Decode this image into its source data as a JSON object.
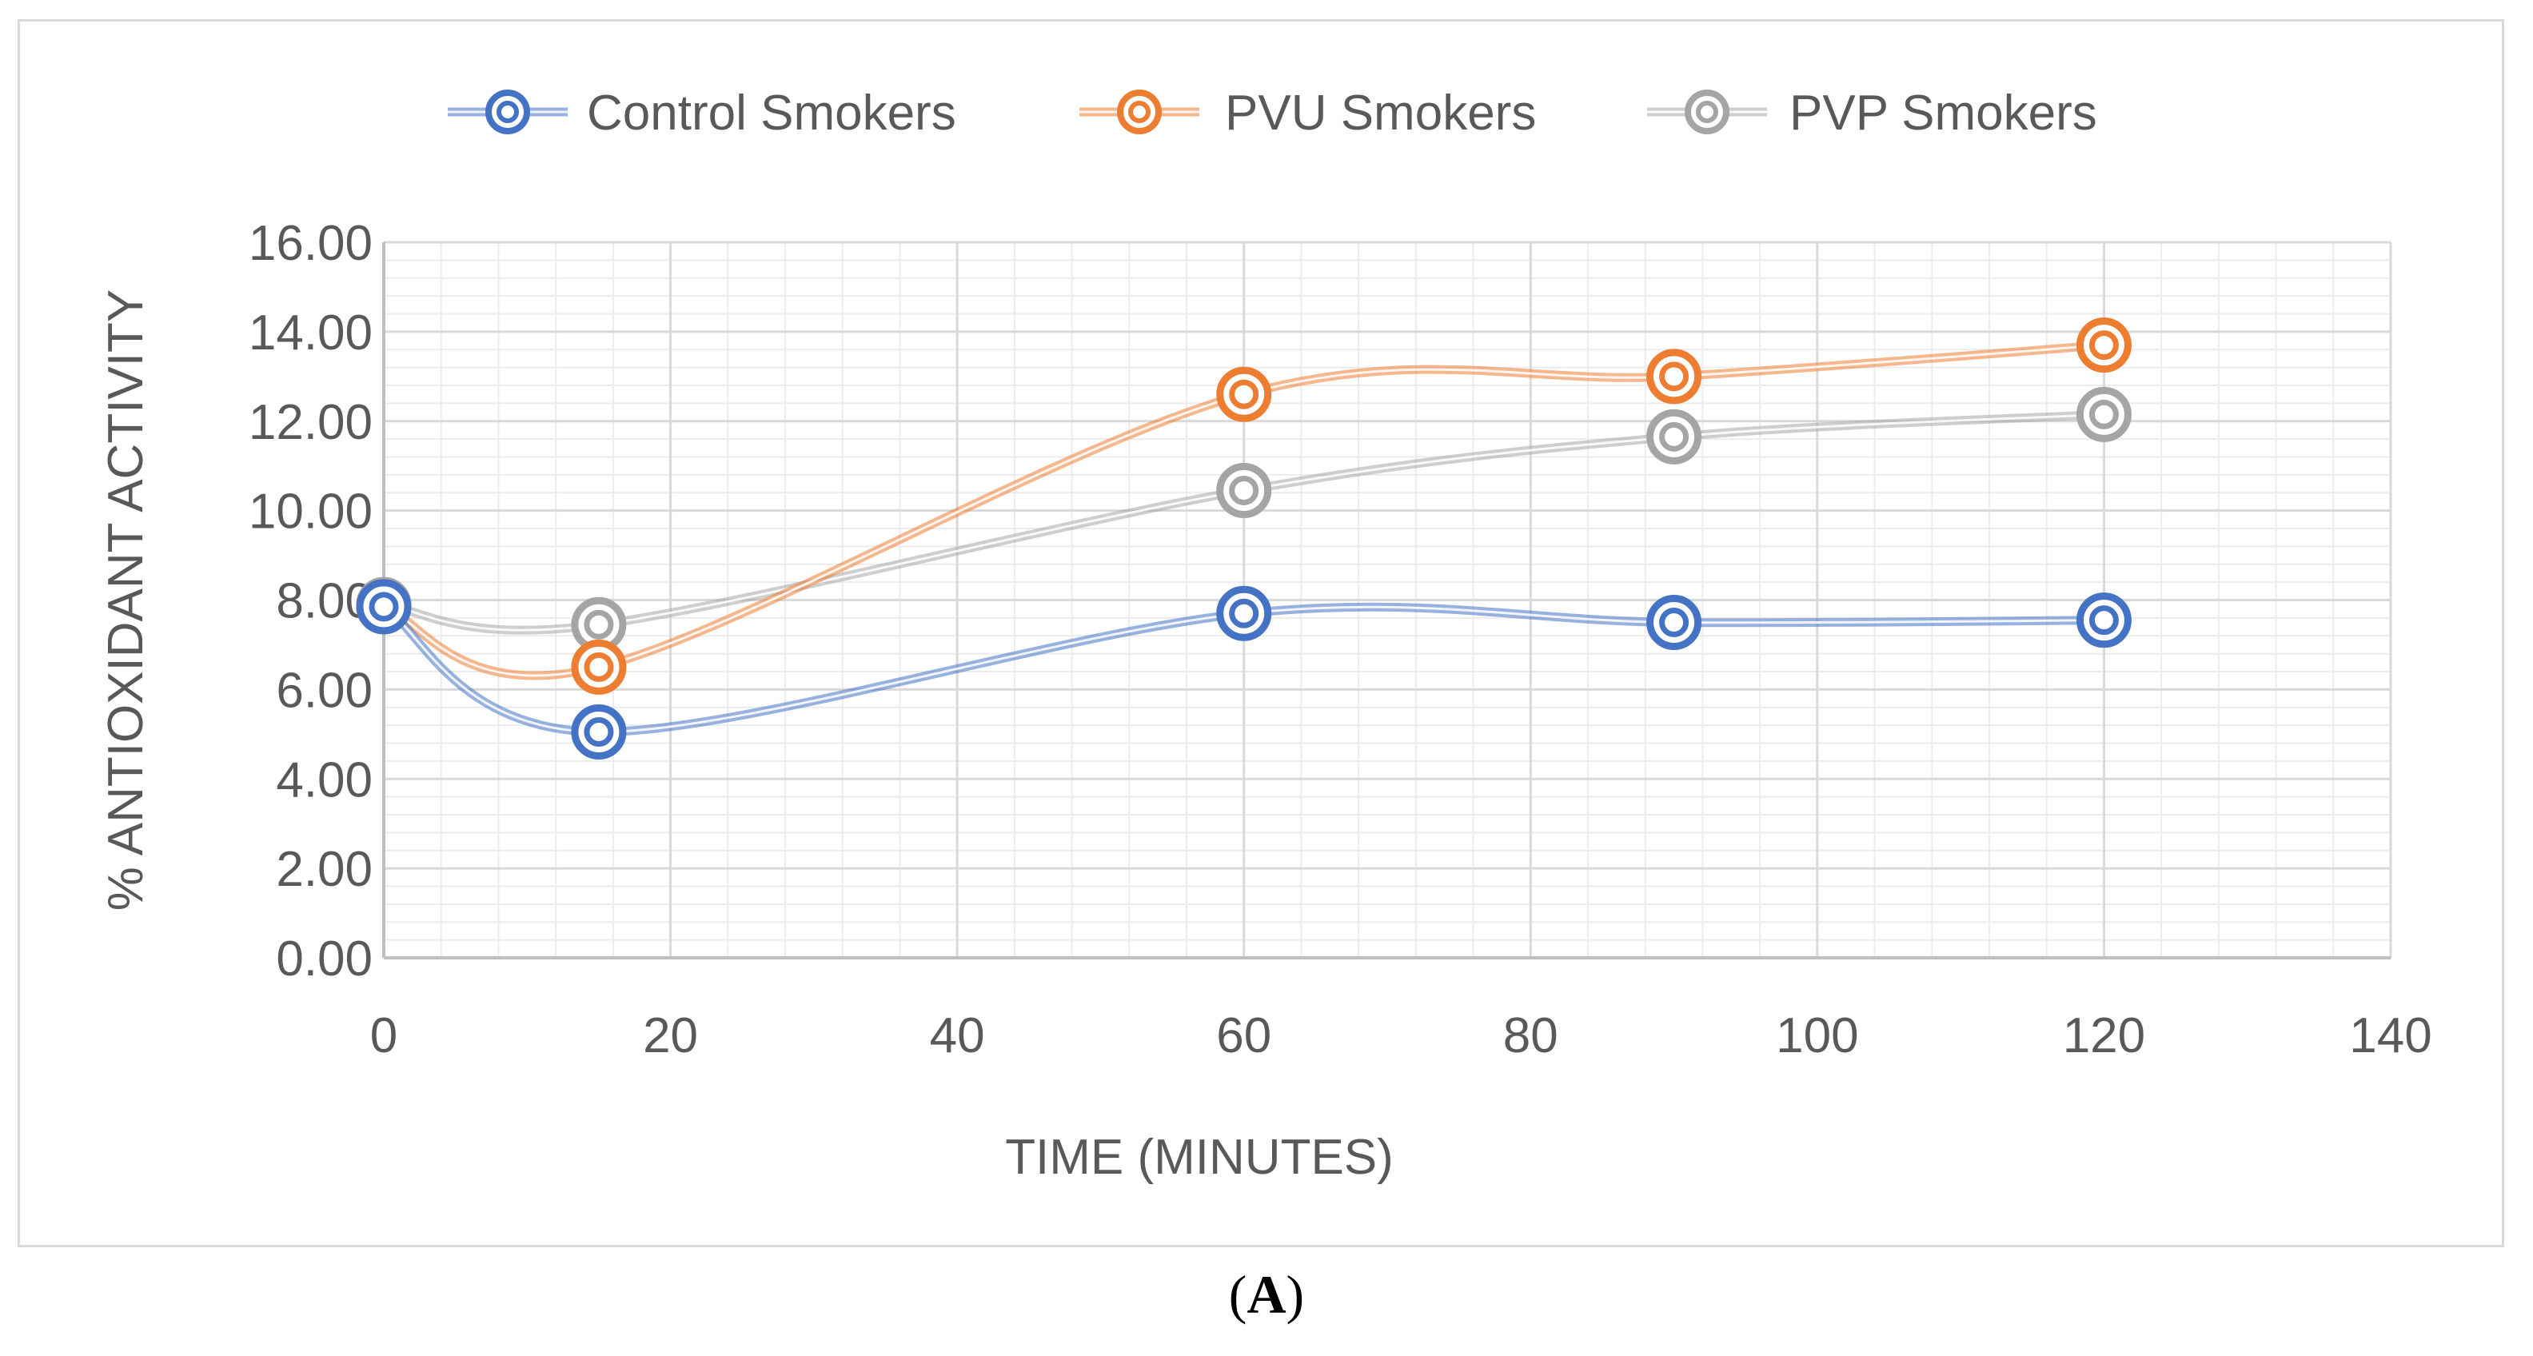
{
  "figure": {
    "label": "A"
  },
  "chart_data": {
    "type": "scatter",
    "title": "",
    "xlabel": "TIME (MINUTES)",
    "ylabel": "% ANTIOXIDANT ACTIVITY",
    "xlim": [
      0,
      140
    ],
    "ylim": [
      0,
      16
    ],
    "x_ticks": [
      0,
      20,
      40,
      60,
      80,
      100,
      120,
      140
    ],
    "y_ticks": [
      "0.00",
      "2.00",
      "4.00",
      "6.00",
      "8.00",
      "10.00",
      "12.00",
      "14.00",
      "16.00"
    ],
    "grid": true,
    "smooth_lines": true,
    "legend_position": "top",
    "series": [
      {
        "name": "Control Smokers",
        "color": "#4472c4",
        "x": [
          0,
          15,
          60,
          90,
          120
        ],
        "y": [
          7.85,
          5.05,
          7.7,
          7.5,
          7.55
        ]
      },
      {
        "name": "PVU Smokers",
        "color": "#ed7d31",
        "x": [
          0,
          15,
          60,
          90,
          120
        ],
        "y": [
          7.85,
          6.5,
          12.6,
          13.0,
          13.7
        ]
      },
      {
        "name": "PVP Smokers",
        "color": "#a5a5a5",
        "x": [
          0,
          15,
          60,
          90,
          120
        ],
        "y": [
          7.9,
          7.45,
          10.45,
          11.65,
          12.15
        ]
      }
    ]
  }
}
